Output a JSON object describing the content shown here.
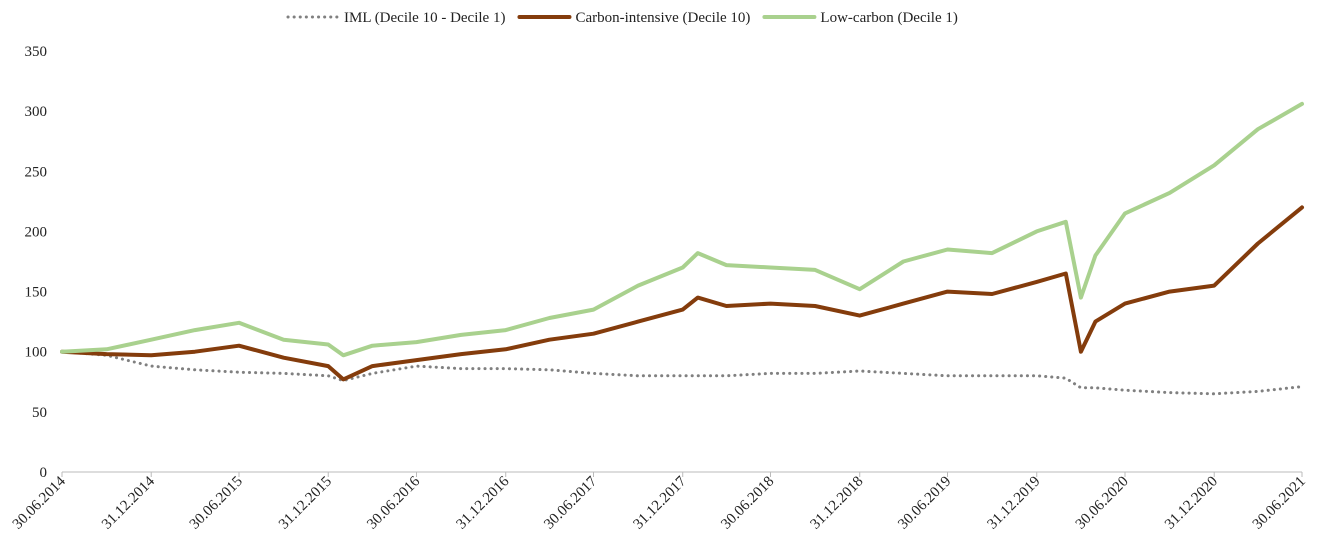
{
  "chart_data": {
    "type": "line",
    "x": [
      "30.06.2014",
      "30.09.2014",
      "31.12.2014",
      "31.03.2015",
      "30.06.2015",
      "30.09.2015",
      "31.12.2015",
      "31.01.2016",
      "31.03.2016",
      "30.06.2016",
      "30.09.2016",
      "31.12.2016",
      "31.03.2017",
      "30.06.2017",
      "30.09.2017",
      "31.12.2017",
      "31.01.2018",
      "31.03.2018",
      "30.06.2018",
      "30.09.2018",
      "31.12.2018",
      "31.03.2019",
      "30.06.2019",
      "30.09.2019",
      "31.12.2019",
      "29.02.2020",
      "31.03.2020",
      "30.04.2020",
      "30.06.2020",
      "30.09.2020",
      "31.12.2020",
      "31.03.2021",
      "30.06.2021"
    ],
    "series": [
      {
        "name": "IML (Decile 10 - Decile 1)",
        "color": "#808080",
        "dash": "dotted",
        "values": [
          100,
          97,
          88,
          85,
          83,
          82,
          80,
          76,
          82,
          88,
          86,
          86,
          85,
          82,
          80,
          80,
          80,
          80,
          82,
          82,
          84,
          82,
          80,
          80,
          80,
          78,
          70,
          70,
          68,
          66,
          65,
          67,
          71
        ]
      },
      {
        "name": "Carbon-intensive (Decile 10)",
        "color": "#843c0c",
        "dash": "solid",
        "values": [
          100,
          98,
          97,
          100,
          105,
          95,
          88,
          77,
          88,
          93,
          98,
          102,
          110,
          115,
          125,
          135,
          145,
          138,
          140,
          138,
          130,
          140,
          150,
          148,
          158,
          165,
          100,
          125,
          140,
          150,
          155,
          190,
          220
        ]
      },
      {
        "name": "Low-carbon (Decile 1)",
        "color": "#a9d18e",
        "dash": "solid",
        "values": [
          100,
          102,
          110,
          118,
          124,
          110,
          106,
          97,
          105,
          108,
          114,
          118,
          128,
          135,
          155,
          170,
          182,
          172,
          170,
          168,
          152,
          175,
          185,
          182,
          200,
          208,
          145,
          180,
          215,
          232,
          255,
          285,
          306
        ]
      }
    ],
    "ylim": [
      0,
      350
    ],
    "yticks": [
      0,
      50,
      100,
      150,
      200,
      250,
      300,
      350
    ],
    "xlim": [
      "30.06.2014",
      "30.06.2021"
    ],
    "xticks": [
      "30.06.2014",
      "31.12.2014",
      "30.06.2015",
      "31.12.2015",
      "30.06.2016",
      "31.12.2016",
      "30.06.2017",
      "31.12.2017",
      "30.06.2018",
      "31.12.2018",
      "30.06.2019",
      "31.12.2019",
      "30.06.2020",
      "31.12.2020",
      "30.06.2021"
    ],
    "grid": false,
    "legend": "top"
  }
}
